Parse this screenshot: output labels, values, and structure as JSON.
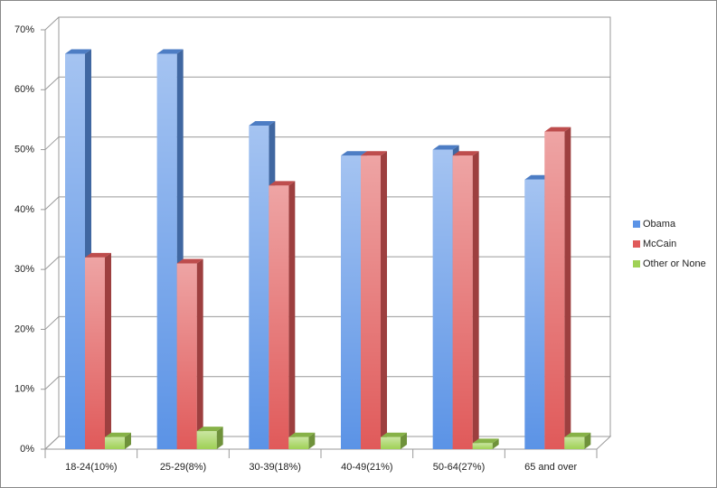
{
  "chart_data": {
    "type": "bar",
    "categories": [
      "18-24(10%)",
      "25-29(8%)",
      "30-39(18%)",
      "40-49(21%)",
      "50-64(27%)",
      "65 and over"
    ],
    "series": [
      {
        "name": "Obama",
        "color": "#5b93e6",
        "values": [
          66,
          66,
          54,
          49,
          50,
          45
        ]
      },
      {
        "name": "McCain",
        "color": "#e05a5a",
        "values": [
          32,
          31,
          44,
          49,
          49,
          53
        ]
      },
      {
        "name": "Other or None",
        "color": "#9fd155",
        "values": [
          2,
          3,
          2,
          2,
          1,
          2
        ]
      }
    ],
    "ylim": [
      0,
      70
    ],
    "yticks": [
      {
        "value": 0,
        "label": "0%"
      },
      {
        "value": 10,
        "label": "10%"
      },
      {
        "value": 20,
        "label": "20%"
      },
      {
        "value": 30,
        "label": "30%"
      },
      {
        "value": 40,
        "label": "40%"
      },
      {
        "value": 50,
        "label": "50%"
      },
      {
        "value": 60,
        "label": "60%"
      },
      {
        "value": 70,
        "label": "70%"
      }
    ],
    "grid": true,
    "legend": "right"
  }
}
